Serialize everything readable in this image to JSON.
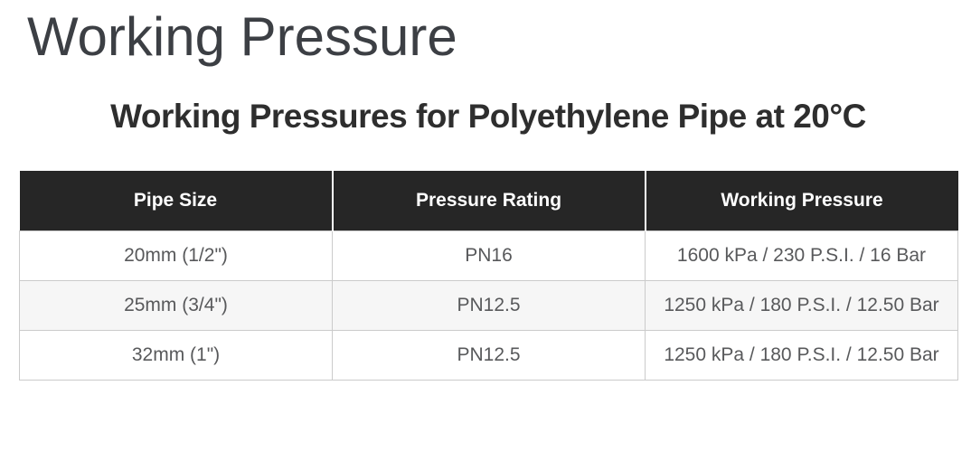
{
  "page": {
    "title": "Working Pressure",
    "subtitle": "Working Pressures for Polyethylene Pipe at 20°C"
  },
  "table": {
    "headers": [
      "Pipe Size",
      "Pressure Rating",
      "Working Pressure"
    ],
    "rows": [
      [
        "20mm (1/2\")",
        "PN16",
        "1600 kPa / 230 P.S.I. / 16 Bar"
      ],
      [
        "25mm (3/4\")",
        "PN12.5",
        "1250 kPa / 180 P.S.I. / 12.50 Bar"
      ],
      [
        "32mm (1\")",
        "PN12.5",
        "1250 kPa / 180 P.S.I. / 12.50 Bar"
      ]
    ]
  },
  "colors": {
    "header_bg": "#262626",
    "header_text": "#ffffff",
    "row_alt_bg": "#f6f6f6",
    "table_border": "#cbcbcb",
    "body_text": "#58595b",
    "title_text": "#3c3f44",
    "subtitle_text": "#2e2e2e"
  }
}
